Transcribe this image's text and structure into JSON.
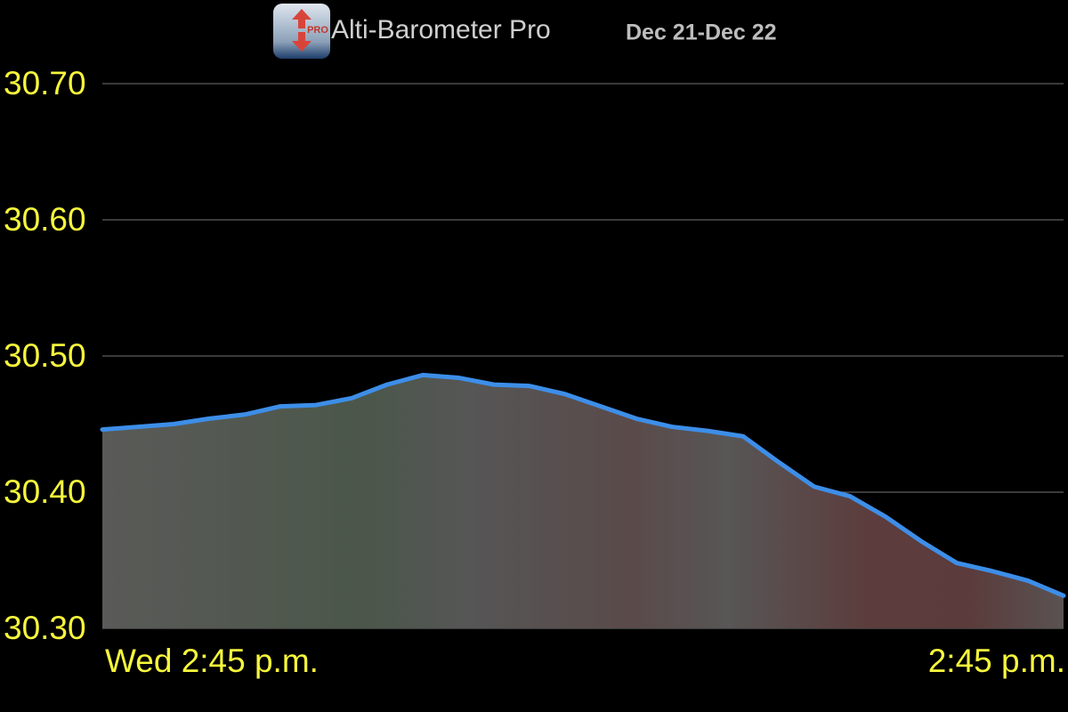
{
  "chart_data": {
    "type": "area",
    "title": "Alti-Barometer Pro",
    "subtitle": "Dec 21-Dec 22",
    "categories": [
      "Wed 2:45 p.m.",
      null,
      null,
      null,
      null,
      null,
      null,
      null,
      null,
      null,
      null,
      null,
      null,
      null,
      null,
      null,
      null,
      null,
      null,
      null,
      null,
      null,
      null,
      null,
      null,
      null,
      null,
      "2:45 p.m."
    ],
    "series": [
      {
        "name": null,
        "color": "#3d8ee8",
        "values": [
          30.446,
          30.448,
          30.45,
          30.454,
          30.457,
          30.463,
          30.464,
          30.469,
          30.479,
          30.486,
          30.484,
          30.479,
          30.478,
          30.472,
          30.463,
          30.454,
          30.448,
          30.445,
          30.441,
          30.422,
          30.404,
          30.397,
          30.382,
          30.364,
          30.348,
          30.342,
          30.335,
          30.324
        ]
      }
    ],
    "ylim": [
      30.3,
      30.7
    ],
    "yticks": [
      {
        "value": 30.3,
        "label": "30.30"
      },
      {
        "value": 30.4,
        "label": "30.40"
      },
      {
        "value": 30.5,
        "label": "30.50"
      },
      {
        "value": 30.6,
        "label": "30.60"
      },
      {
        "value": 30.7,
        "label": "30.70"
      }
    ],
    "grid": true
  }
}
